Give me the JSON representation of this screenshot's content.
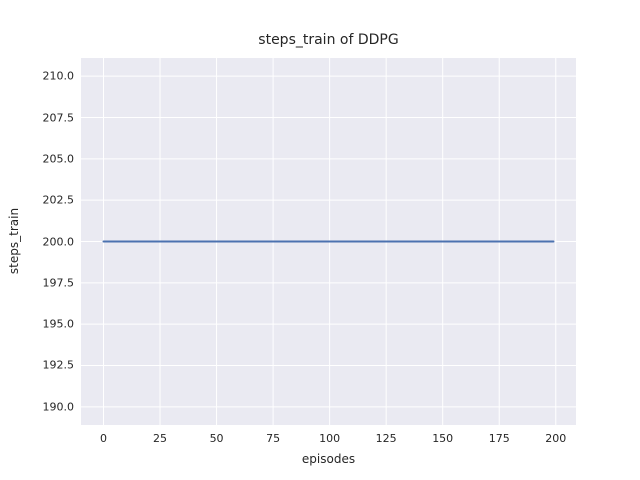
{
  "chart_data": {
    "type": "line",
    "title": "steps_train of DDPG",
    "xlabel": "episodes",
    "ylabel": "steps_train",
    "x_ticks": [
      0,
      25,
      50,
      75,
      100,
      125,
      150,
      175,
      200
    ],
    "x_tick_labels": [
      "0",
      "25",
      "50",
      "75",
      "100",
      "125",
      "150",
      "175",
      "200"
    ],
    "y_ticks": [
      190.0,
      192.5,
      195.0,
      197.5,
      200.0,
      202.5,
      205.0,
      207.5,
      210.0
    ],
    "y_tick_labels": [
      "190.0",
      "192.5",
      "195.0",
      "197.5",
      "200.0",
      "202.5",
      "205.0",
      "207.5",
      "210.0"
    ],
    "xlim": [
      -9.95,
      208.95
    ],
    "ylim": [
      188.9,
      211.1
    ],
    "grid": true,
    "legend": "none",
    "style": {
      "axes_background": "#EAEAF2",
      "grid_color": "#FFFFFF",
      "text_color": "#262626",
      "line_color": "#4C72B0",
      "line_width": 2
    },
    "series": [
      {
        "name": "steps_train",
        "x": [
          0,
          199
        ],
        "y": [
          200,
          200
        ],
        "note": "constant value 200 for every episode from 0 to 199",
        "color": "#4C72B0"
      }
    ]
  }
}
